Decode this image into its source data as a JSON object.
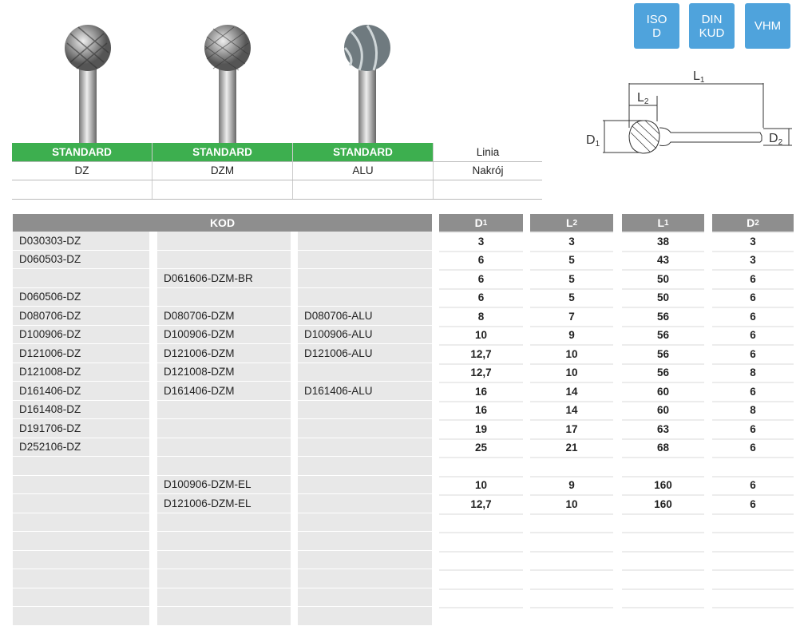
{
  "badges": [
    "ISO\nD",
    "DIN\nKUD",
    "VHM"
  ],
  "diagram": {
    "L1": "L",
    "L1_sub": "1",
    "L2": "L",
    "L2_sub": "2",
    "D1": "D",
    "D1_sub": "1",
    "D2": "D",
    "D2_sub": "2"
  },
  "top_table": {
    "line_row": [
      "STANDARD",
      "STANDARD",
      "STANDARD",
      "Linia"
    ],
    "cut_row": [
      "DZ",
      "DZM",
      "ALU",
      "Nakrój"
    ]
  },
  "main_table": {
    "header": {
      "kod": "KOD",
      "cols": [
        {
          "l": "D",
          "s": "1"
        },
        {
          "l": "L",
          "s": "2"
        },
        {
          "l": "L",
          "s": "1"
        },
        {
          "l": "D",
          "s": "2"
        }
      ]
    },
    "rows": [
      [
        "D030303-DZ",
        "",
        "",
        "3",
        "3",
        "38",
        "3"
      ],
      [
        "D060503-DZ",
        "",
        "",
        "6",
        "5",
        "43",
        "3"
      ],
      [
        "",
        "D061606-DZM-BR",
        "",
        "6",
        "5",
        "50",
        "6"
      ],
      [
        "D060506-DZ",
        "",
        "",
        "6",
        "5",
        "50",
        "6"
      ],
      [
        "D080706-DZ",
        "D080706-DZM",
        "D080706-ALU",
        "8",
        "7",
        "56",
        "6"
      ],
      [
        "D100906-DZ",
        "D100906-DZM",
        "D100906-ALU",
        "10",
        "9",
        "56",
        "6"
      ],
      [
        "D121006-DZ",
        "D121006-DZM",
        "D121006-ALU",
        "12,7",
        "10",
        "56",
        "6"
      ],
      [
        "D121008-DZ",
        "D121008-DZM",
        "",
        "12,7",
        "10",
        "56",
        "8"
      ],
      [
        "D161406-DZ",
        "D161406-DZM",
        "D161406-ALU",
        "16",
        "14",
        "60",
        "6"
      ],
      [
        "D161408-DZ",
        "",
        "",
        "16",
        "14",
        "60",
        "8"
      ],
      [
        "D191706-DZ",
        "",
        "",
        "19",
        "17",
        "63",
        "6"
      ],
      [
        "D252106-DZ",
        "",
        "",
        "25",
        "21",
        "68",
        "6"
      ],
      [
        "",
        "",
        "",
        "",
        "",
        "",
        ""
      ],
      [
        "",
        "D100906-DZM-EL",
        "",
        "10",
        "9",
        "160",
        "6"
      ],
      [
        "",
        "D121006-DZM-EL",
        "",
        "12,7",
        "10",
        "160",
        "6"
      ],
      [
        "",
        "",
        "",
        "",
        "",
        "",
        ""
      ],
      [
        "",
        "",
        "",
        "",
        "",
        "",
        ""
      ],
      [
        "",
        "",
        "",
        "",
        "",
        "",
        ""
      ],
      [
        "",
        "",
        "",
        "",
        "",
        "",
        ""
      ],
      [
        "",
        "",
        "",
        "",
        "",
        "",
        ""
      ],
      [
        "",
        "",
        "",
        "",
        "",
        "",
        ""
      ]
    ]
  },
  "colors": {
    "green": "#3daf4f",
    "badge": "#4fa3dc",
    "header": "#8e8e8e",
    "code_bg": "#e8e8e8"
  }
}
